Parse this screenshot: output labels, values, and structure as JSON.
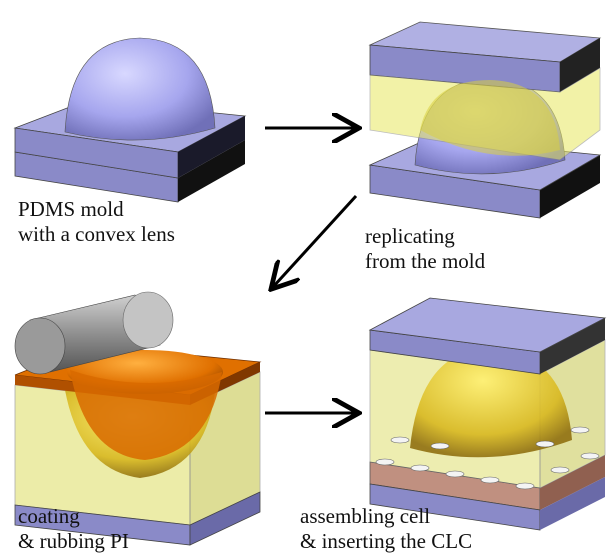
{
  "steps": [
    {
      "caption": [
        "PDMS mold",
        "with a convex lens"
      ]
    },
    {
      "caption": [
        "replicating",
        "from the mold"
      ]
    },
    {
      "caption": [
        "coating",
        "& rubbing PI"
      ]
    },
    {
      "caption": [
        "assembling cell",
        "& inserting the CLC"
      ]
    }
  ]
}
